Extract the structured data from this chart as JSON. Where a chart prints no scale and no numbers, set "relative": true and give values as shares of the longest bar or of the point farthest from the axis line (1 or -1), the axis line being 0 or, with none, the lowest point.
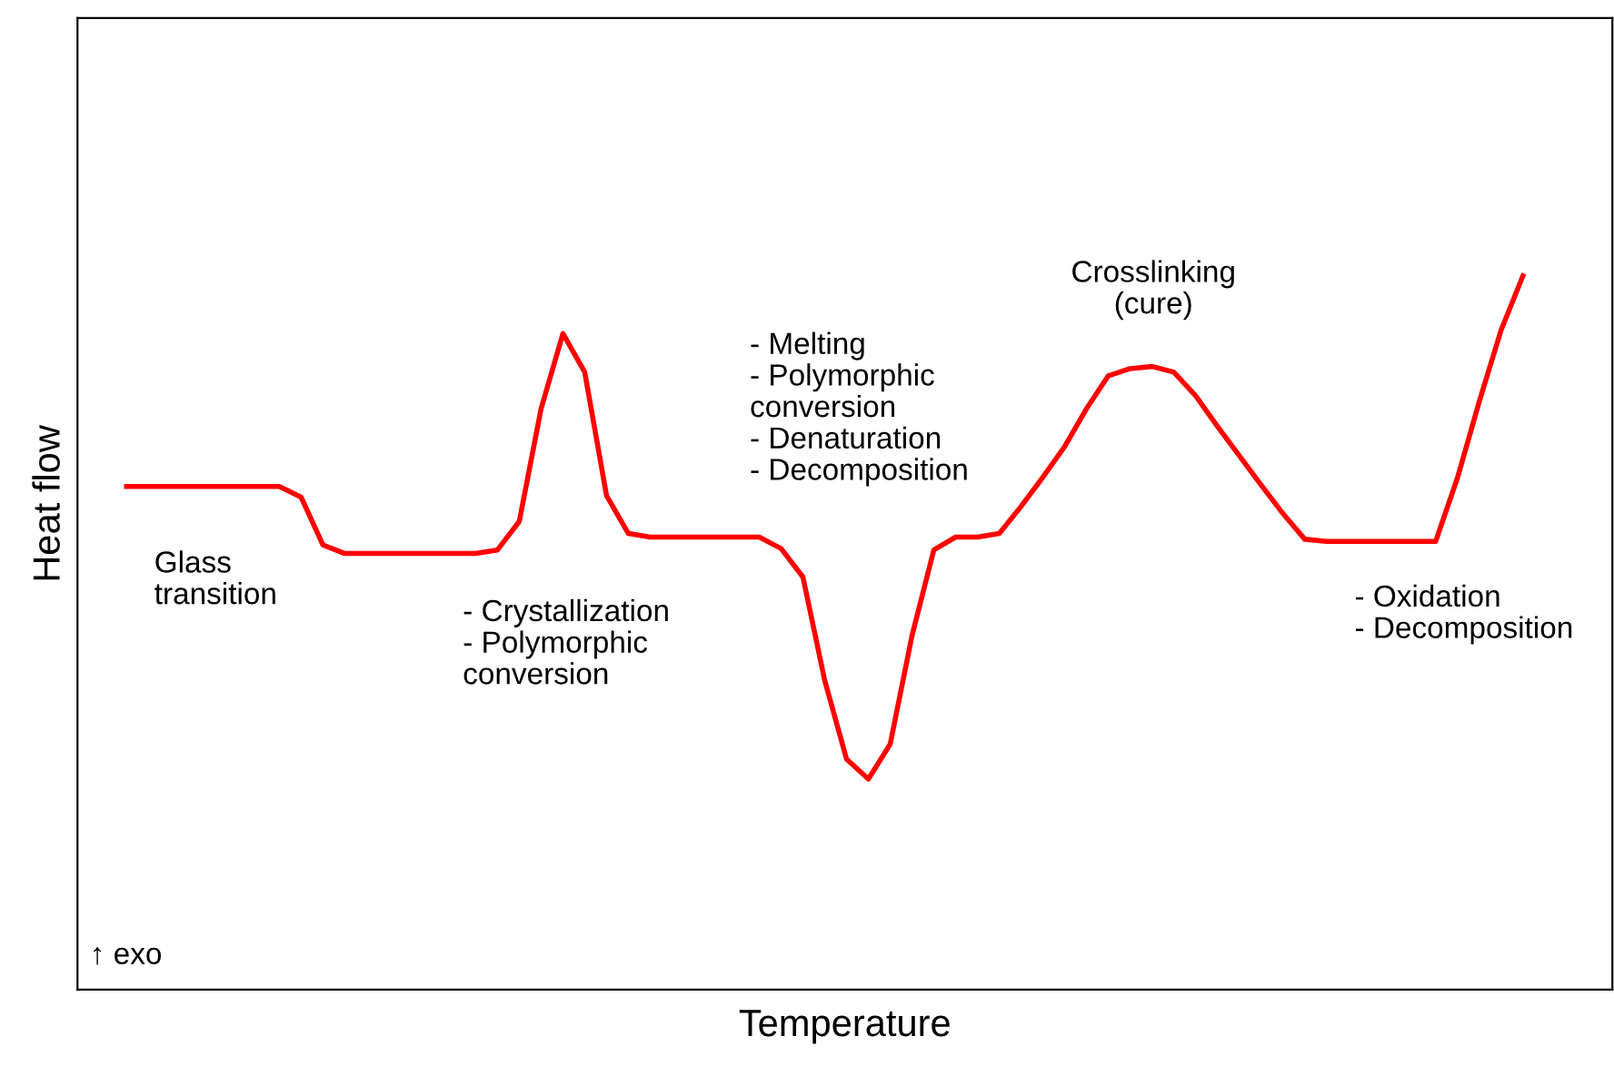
{
  "chart_data": {
    "type": "line",
    "relative": true,
    "xlabel": "Temperature",
    "ylabel": "Heat flow",
    "categories": [
      null,
      null,
      null,
      null,
      null,
      null,
      null,
      null,
      null,
      null,
      null,
      null,
      null,
      null,
      null,
      null,
      null,
      null,
      null,
      null,
      null,
      null,
      null,
      null,
      null,
      null,
      null,
      null,
      null,
      null,
      null,
      null,
      null,
      null,
      null,
      null,
      null,
      null,
      null,
      null,
      null,
      null,
      null,
      null,
      null,
      null,
      null,
      null,
      null,
      null,
      null,
      null,
      null,
      null,
      null,
      null,
      null,
      null,
      null,
      null,
      null,
      null,
      null,
      null,
      null
    ],
    "series": [
      {
        "color": "#ff0000",
        "values": [
          0.705,
          0.705,
          0.705,
          0.705,
          0.705,
          0.705,
          0.705,
          0.705,
          0.69,
          0.623,
          0.611,
          0.611,
          0.611,
          0.611,
          0.611,
          0.611,
          0.611,
          0.616,
          0.656,
          0.814,
          0.919,
          0.865,
          0.692,
          0.639,
          0.634,
          0.634,
          0.634,
          0.634,
          0.634,
          0.634,
          0.618,
          0.578,
          0.433,
          0.323,
          0.295,
          0.344,
          0.496,
          0.616,
          0.634,
          0.634,
          0.639,
          0.677,
          0.718,
          0.761,
          0.814,
          0.86,
          0.87,
          0.873,
          0.865,
          0.832,
          0.789,
          0.748,
          0.707,
          0.667,
          0.631,
          0.628,
          0.628,
          0.628,
          0.628,
          0.628,
          0.628,
          0.717,
          0.824,
          0.924,
          1.0
        ]
      }
    ],
    "annotations": [
      "Glass\ntransition",
      "- Crystallization\n- Polymorphic\nconversion",
      "- Melting\n- Polymorphic\nconversion\n- Denaturation\n- Decomposition",
      "Crosslinking\n(cure)",
      "- Oxidation\n- Decomposition",
      "↑ exo"
    ],
    "grid": false,
    "legend": false,
    "marker": "none",
    "line_style": "solid"
  }
}
